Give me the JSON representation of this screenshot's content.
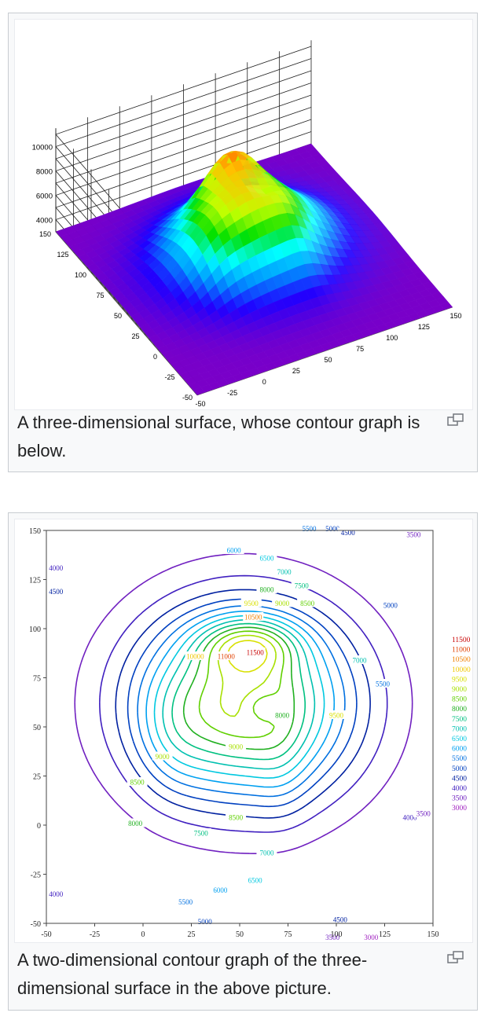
{
  "figures": [
    {
      "caption": "A three-dimensional surface, whose contour graph is below.",
      "magnify_icon": "enlarge-icon"
    },
    {
      "caption": "A two-dimensional contour graph of the three-dimensional surface in the above picture.",
      "magnify_icon": "enlarge-icon"
    }
  ],
  "chart_data": [
    {
      "type": "surface",
      "z_ticks": [
        "10000",
        "8000",
        "6000",
        "4000"
      ],
      "y_ticks": [
        "150",
        "125",
        "100",
        "75",
        "50",
        "25",
        "0",
        "-25",
        "-50"
      ],
      "x_ticks": [
        "-50",
        "-25",
        "0",
        "25",
        "50",
        "75",
        "100",
        "125",
        "150"
      ],
      "x_range": [
        -50,
        150
      ],
      "y_range": [
        -50,
        150
      ],
      "z_range": [
        3000,
        11500
      ],
      "peak": {
        "x": 55,
        "y": 90,
        "z": 11500
      },
      "colormap": [
        "#7a00c8",
        "#2000ff",
        "#0090ff",
        "#00ffff",
        "#00e000",
        "#c0ff00",
        "#ffc000",
        "#ff4000",
        "#d00000"
      ]
    },
    {
      "type": "contour",
      "x_ticks": [
        "-50",
        "-25",
        "0",
        "25",
        "50",
        "75",
        "100",
        "125",
        "150"
      ],
      "y_ticks": [
        "150",
        "125",
        "100",
        "75",
        "50",
        "25",
        "0",
        "-25",
        "-50"
      ],
      "x_range": [
        -50,
        150
      ],
      "y_range": [
        -50,
        150
      ],
      "levels": [
        11500,
        11000,
        10500,
        10000,
        9500,
        9000,
        8500,
        8000,
        7500,
        7000,
        6500,
        6000,
        5500,
        5000,
        4500,
        4000,
        3500,
        3000
      ],
      "legend": [
        {
          "label": "11500",
          "color": "#c80000"
        },
        {
          "label": "11000",
          "color": "#e04000"
        },
        {
          "label": "10500",
          "color": "#f08000"
        },
        {
          "label": "10000",
          "color": "#f0c800"
        },
        {
          "label": "9500",
          "color": "#d8e000"
        },
        {
          "label": "9000",
          "color": "#a8e000"
        },
        {
          "label": "8500",
          "color": "#60d000"
        },
        {
          "label": "8000",
          "color": "#20b020"
        },
        {
          "label": "7500",
          "color": "#00c080"
        },
        {
          "label": "7000",
          "color": "#00c0b0"
        },
        {
          "label": "6500",
          "color": "#00c8e0"
        },
        {
          "label": "6000",
          "color": "#00a0f0"
        },
        {
          "label": "5500",
          "color": "#0070e0"
        },
        {
          "label": "5000",
          "color": "#0040c0"
        },
        {
          "label": "4500",
          "color": "#0020a0"
        },
        {
          "label": "4000",
          "color": "#4020c0"
        },
        {
          "label": "3500",
          "color": "#7020c0"
        },
        {
          "label": "3000",
          "color": "#a020c0"
        }
      ],
      "contour_labels": [
        {
          "text": "11500",
          "x": 58,
          "y": 88,
          "level": 11500
        },
        {
          "text": "11000",
          "x": 43,
          "y": 86,
          "level": 11000
        },
        {
          "text": "10500",
          "x": 57,
          "y": 106,
          "level": 10500
        },
        {
          "text": "10000",
          "x": 27,
          "y": 86,
          "level": 10000
        },
        {
          "text": "9500",
          "x": 56,
          "y": 113,
          "level": 9500
        },
        {
          "text": "9000",
          "x": 72,
          "y": 113,
          "level": 9000
        },
        {
          "text": "8500",
          "x": 85,
          "y": 113,
          "level": 8500
        },
        {
          "text": "8000",
          "x": 64,
          "y": 120,
          "level": 8000
        },
        {
          "text": "7500",
          "x": 82,
          "y": 122,
          "level": 7500
        },
        {
          "text": "7000",
          "x": 73,
          "y": 129,
          "level": 7000
        },
        {
          "text": "6500",
          "x": 64,
          "y": 136,
          "level": 6500
        },
        {
          "text": "6000",
          "x": 47,
          "y": 140,
          "level": 6000
        },
        {
          "text": "5500",
          "x": 86,
          "y": 151,
          "level": 5500
        },
        {
          "text": "5000",
          "x": 98,
          "y": 151,
          "level": 5000
        },
        {
          "text": "4500",
          "x": 106,
          "y": 149,
          "level": 4500
        },
        {
          "text": "3500",
          "x": 140,
          "y": 148,
          "level": 3500
        },
        {
          "text": "4000",
          "x": -45,
          "y": 131,
          "level": 4000
        },
        {
          "text": "4500",
          "x": -45,
          "y": 119,
          "level": 4500
        },
        {
          "text": "5000",
          "x": 128,
          "y": 112,
          "level": 5000
        },
        {
          "text": "5500",
          "x": 124,
          "y": 72,
          "level": 5500
        },
        {
          "text": "7000",
          "x": 112,
          "y": 84,
          "level": 7000
        },
        {
          "text": "9500",
          "x": 100,
          "y": 56,
          "level": 9500
        },
        {
          "text": "8000",
          "x": 72,
          "y": 56,
          "level": 8000
        },
        {
          "text": "9000",
          "x": 48,
          "y": 40,
          "level": 9000
        },
        {
          "text": "9000",
          "x": 10,
          "y": 35,
          "level": 9000
        },
        {
          "text": "8500",
          "x": -3,
          "y": 22,
          "level": 8500
        },
        {
          "text": "8500",
          "x": 48,
          "y": 4,
          "level": 8500
        },
        {
          "text": "8000",
          "x": -4,
          "y": 1,
          "level": 8000
        },
        {
          "text": "7500",
          "x": 30,
          "y": -4,
          "level": 7500
        },
        {
          "text": "7000",
          "x": 64,
          "y": -14,
          "level": 7000
        },
        {
          "text": "6500",
          "x": 58,
          "y": -28,
          "level": 6500
        },
        {
          "text": "6000",
          "x": 40,
          "y": -33,
          "level": 6000
        },
        {
          "text": "5500",
          "x": 22,
          "y": -39,
          "level": 5500
        },
        {
          "text": "5000",
          "x": 32,
          "y": -49,
          "level": 5000
        },
        {
          "text": "4000",
          "x": -45,
          "y": -35,
          "level": 4000
        },
        {
          "text": "4000",
          "x": 138,
          "y": 4,
          "level": 4000
        },
        {
          "text": "3500",
          "x": 145,
          "y": 6,
          "level": 3500
        },
        {
          "text": "4500",
          "x": 102,
          "y": -48,
          "level": 4500
        },
        {
          "text": "3500",
          "x": 98,
          "y": -57,
          "level": 3500
        },
        {
          "text": "3000",
          "x": 118,
          "y": -57,
          "level": 3000
        }
      ]
    }
  ]
}
